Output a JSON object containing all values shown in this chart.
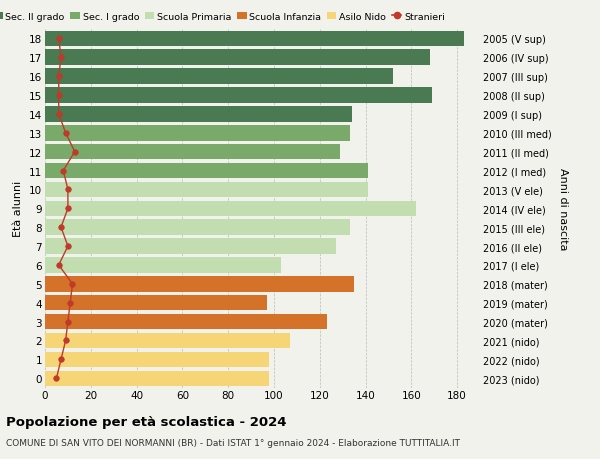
{
  "ages": [
    18,
    17,
    16,
    15,
    14,
    13,
    12,
    11,
    10,
    9,
    8,
    7,
    6,
    5,
    4,
    3,
    2,
    1,
    0
  ],
  "right_labels": [
    "2005 (V sup)",
    "2006 (IV sup)",
    "2007 (III sup)",
    "2008 (II sup)",
    "2009 (I sup)",
    "2010 (III med)",
    "2011 (II med)",
    "2012 (I med)",
    "2013 (V ele)",
    "2014 (IV ele)",
    "2015 (III ele)",
    "2016 (II ele)",
    "2017 (I ele)",
    "2018 (mater)",
    "2019 (mater)",
    "2020 (mater)",
    "2021 (nido)",
    "2022 (nido)",
    "2023 (nido)"
  ],
  "bar_values": [
    183,
    168,
    152,
    169,
    134,
    133,
    129,
    141,
    141,
    162,
    133,
    127,
    103,
    135,
    97,
    123,
    107,
    98,
    98
  ],
  "bar_colors": [
    "#4a7a52",
    "#4a7a52",
    "#4a7a52",
    "#4a7a52",
    "#4a7a52",
    "#7aaa6a",
    "#7aaa6a",
    "#7aaa6a",
    "#c2ddb0",
    "#c2ddb0",
    "#c2ddb0",
    "#c2ddb0",
    "#c2ddb0",
    "#d4722a",
    "#d4722a",
    "#d4722a",
    "#f5d575",
    "#f5d575",
    "#f5d575"
  ],
  "stranieri_values": [
    6,
    7,
    6,
    6,
    6,
    9,
    13,
    8,
    10,
    10,
    7,
    10,
    6,
    12,
    11,
    10,
    9,
    7,
    5
  ],
  "legend_labels": [
    "Sec. II grado",
    "Sec. I grado",
    "Scuola Primaria",
    "Scuola Infanzia",
    "Asilo Nido",
    "Stranieri"
  ],
  "legend_colors": [
    "#4a7a52",
    "#7aaa6a",
    "#c2ddb0",
    "#d4722a",
    "#f5d575",
    "#c0392b"
  ],
  "ylabel_left": "Età alunni",
  "ylabel_right": "Anni di nascita",
  "title": "Popolazione per età scolastica - 2024",
  "subtitle": "COMUNE DI SAN VITO DEI NORMANNI (BR) - Dati ISTAT 1° gennaio 2024 - Elaborazione TUTTITALIA.IT",
  "xlim": [
    0,
    190
  ],
  "xticks": [
    0,
    20,
    40,
    60,
    80,
    100,
    120,
    140,
    160,
    180
  ],
  "bg_color": "#f2f2ed",
  "stranieri_color": "#c0392b"
}
